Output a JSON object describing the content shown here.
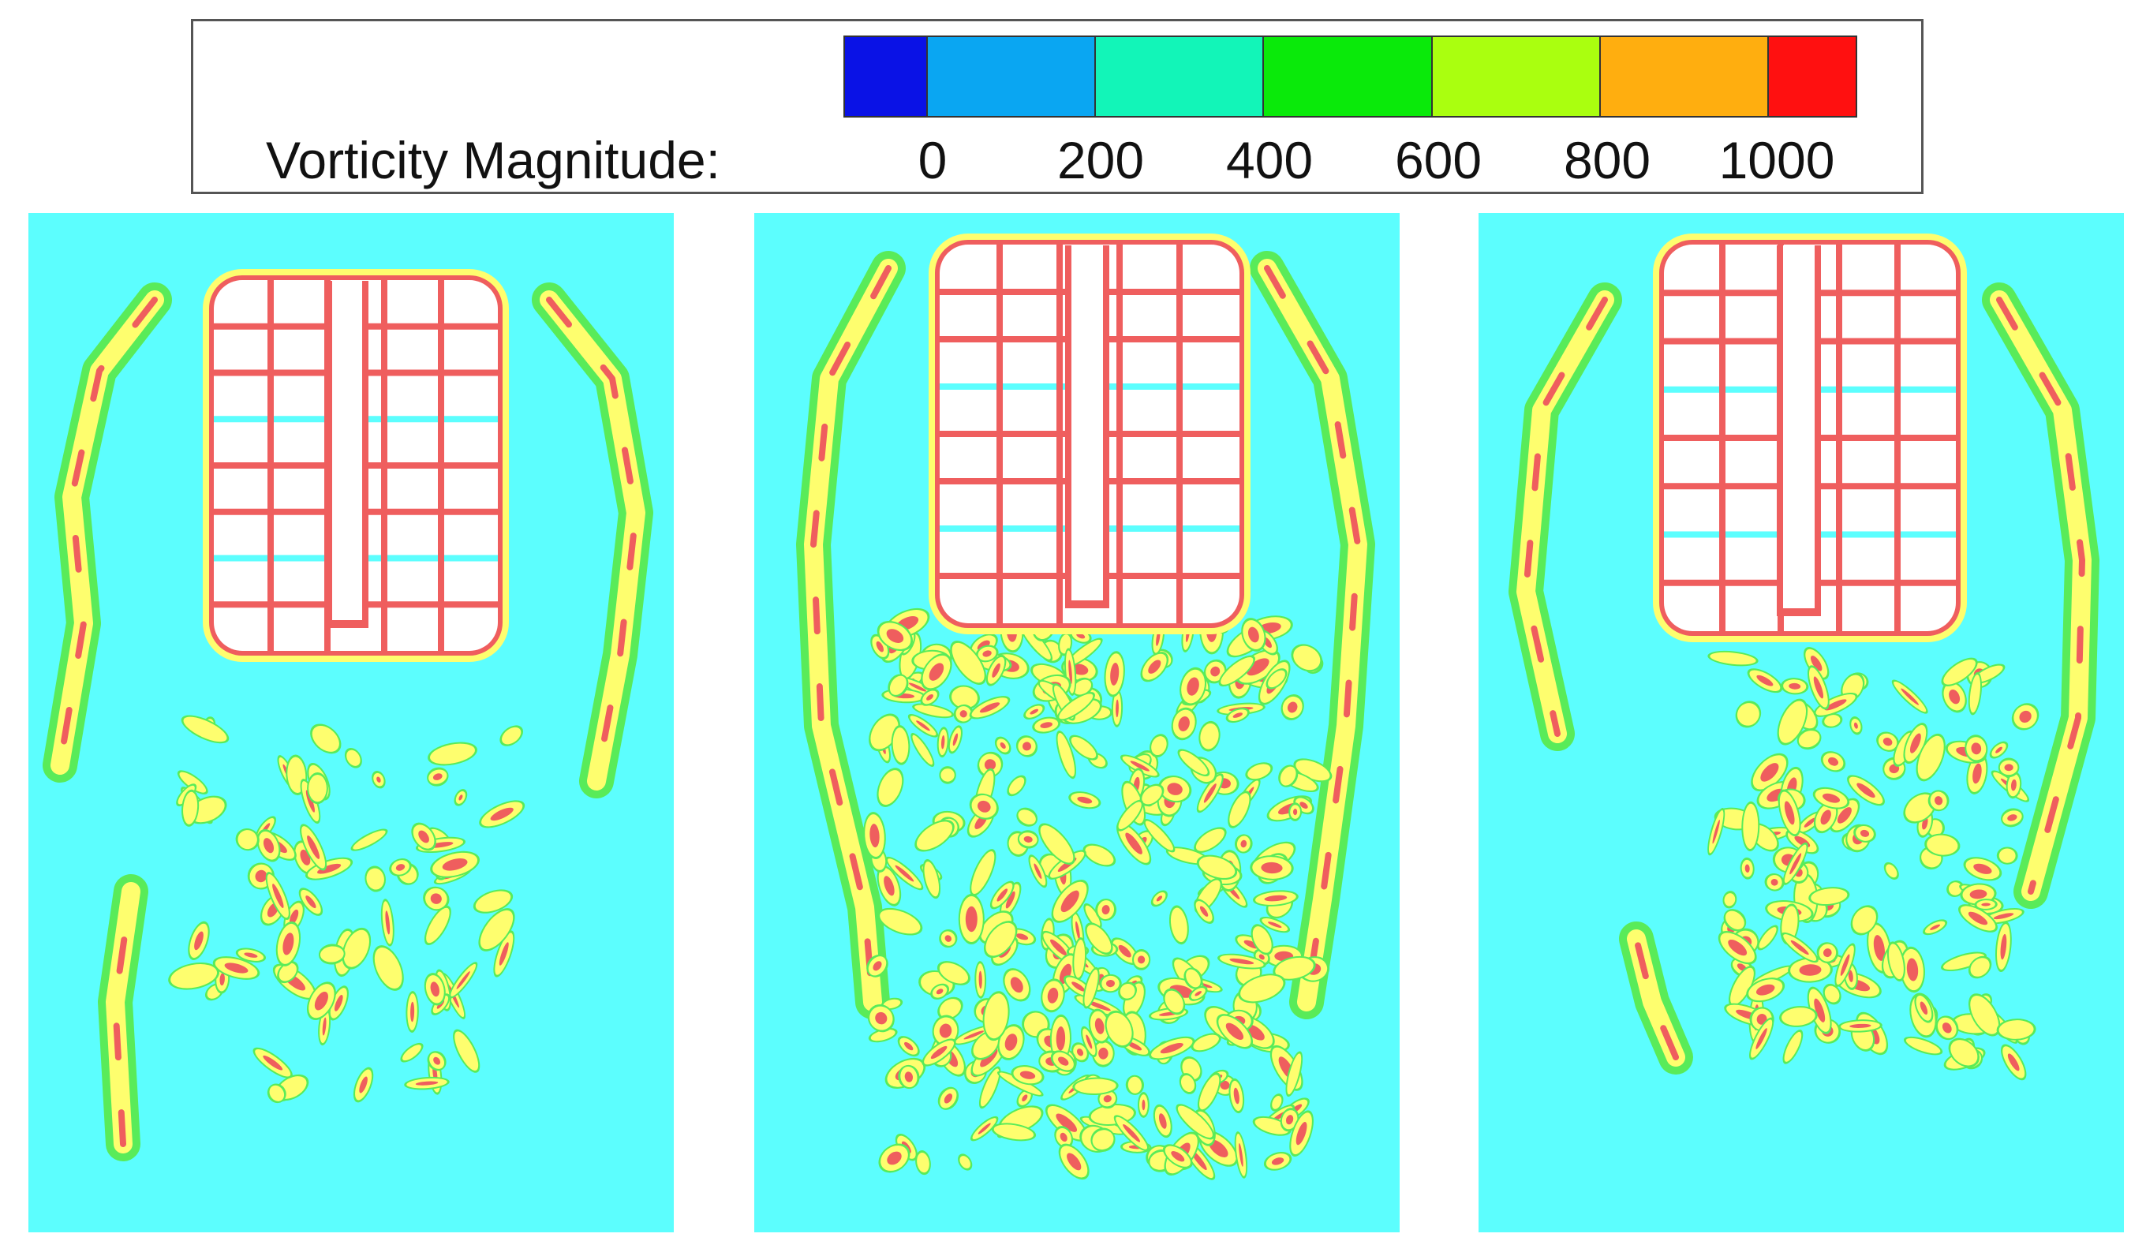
{
  "legend": {
    "title": "Vorticity Magnitude:",
    "ticks": [
      "0",
      "200",
      "400",
      "600",
      "800",
      "1000"
    ],
    "colors": [
      "#0a12e6",
      "#0aa6f2",
      "#12f5b8",
      "#0aea0a",
      "#aaff0f",
      "#ffae0f",
      "#ff1010"
    ]
  },
  "field_colors": {
    "background": "#5cfefe",
    "body": "#ffffff",
    "low": "#59eb59",
    "mid": "#fefe6e",
    "high": "#ef5e5e"
  },
  "panels": [
    {
      "id": "panel-left"
    },
    {
      "id": "panel-middle"
    },
    {
      "id": "panel-right"
    }
  ]
}
